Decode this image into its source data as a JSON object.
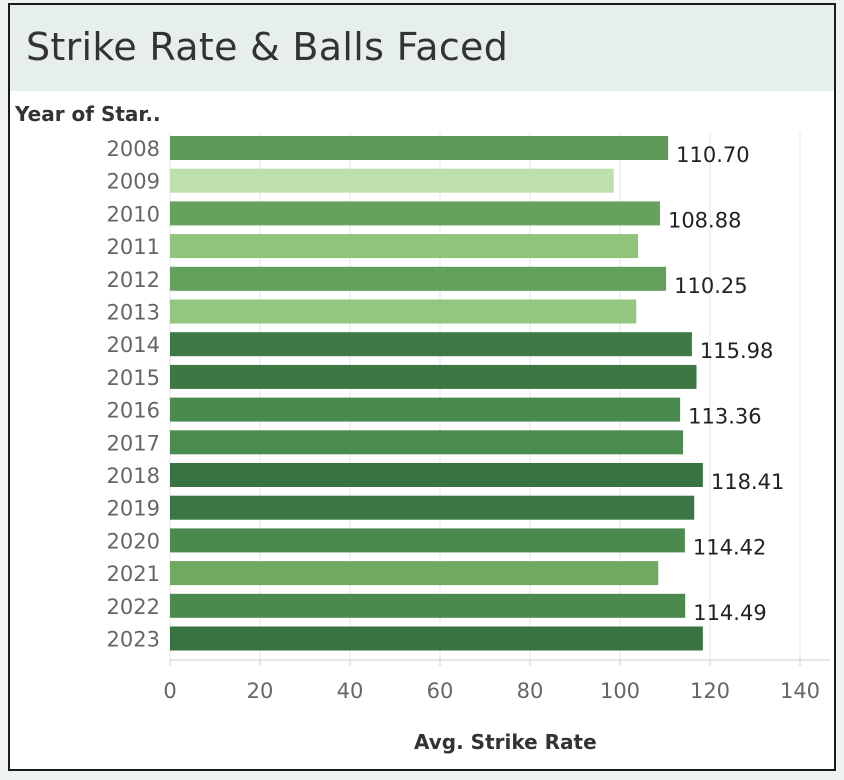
{
  "header": {
    "title": "Strike Rate & Balls Faced"
  },
  "chart_data": {
    "type": "bar",
    "orientation": "horizontal",
    "category_header": "Year of Star..",
    "xlabel": "Avg. Strike Rate",
    "xlim": [
      0,
      140
    ],
    "x_ticks": [
      0,
      20,
      40,
      60,
      80,
      100,
      120,
      140
    ],
    "grid": true,
    "categories": [
      "2008",
      "2009",
      "2010",
      "2011",
      "2012",
      "2013",
      "2014",
      "2015",
      "2016",
      "2017",
      "2018",
      "2019",
      "2020",
      "2021",
      "2022",
      "2023"
    ],
    "values": [
      110.7,
      98.6,
      108.88,
      104.0,
      110.25,
      103.6,
      115.98,
      117.0,
      113.36,
      114.0,
      118.41,
      116.5,
      114.42,
      108.5,
      114.49,
      118.4
    ],
    "data_labels": [
      "110.70",
      "",
      "108.88",
      "",
      "110.25",
      "",
      "115.98",
      "",
      "113.36",
      "",
      "118.41",
      "",
      "114.42",
      "",
      "114.49",
      ""
    ],
    "colors": [
      "#5f9a5b",
      "#bde0ac",
      "#66a15e",
      "#8fc47b",
      "#63a05c",
      "#93c77f",
      "#3e7a45",
      "#3d7744",
      "#498a4e",
      "#4a8b4f",
      "#3a7342",
      "#3c7644",
      "#4a8a4f",
      "#70a95f",
      "#4a8a4f",
      "#3a7342"
    ]
  }
}
